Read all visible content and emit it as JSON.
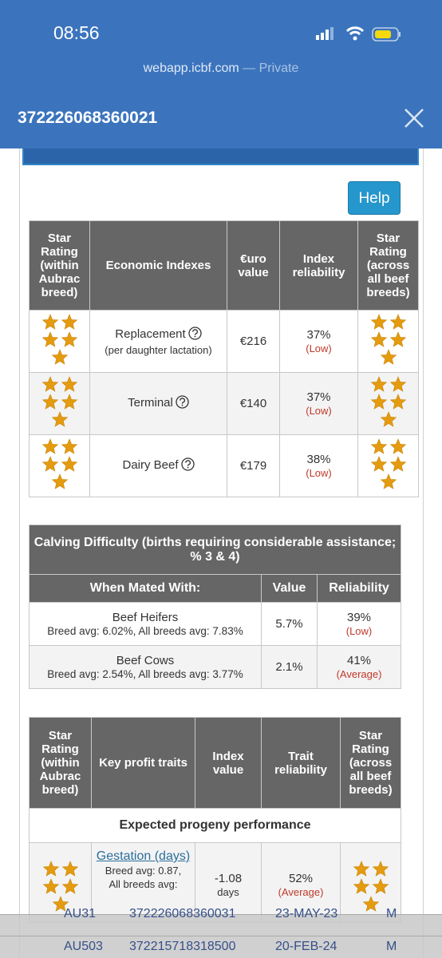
{
  "status_bar": {
    "time": "08:56"
  },
  "browser": {
    "url": "webapp.icbf.com",
    "mode": "— Private"
  },
  "header": {
    "title": "372226068360021"
  },
  "help_button": "Help",
  "economic_table": {
    "headers": [
      "Star Rating (within Aubrac breed)",
      "Economic Indexes",
      "€uro value",
      "Index reliability",
      "Star Rating (across all beef breeds)"
    ],
    "rows": [
      {
        "stars_within": 5,
        "index": "Replacement",
        "note": "(per daughter lactation)",
        "value": "€216",
        "reliability": "37%",
        "level": "(Low)",
        "stars_across": 5
      },
      {
        "stars_within": 5,
        "index": "Terminal",
        "value": "€140",
        "reliability": "37%",
        "level": "(Low)",
        "stars_across": 5
      },
      {
        "stars_within": 5,
        "index": "Dairy Beef",
        "value": "€179",
        "reliability": "38%",
        "level": "(Low)",
        "stars_across": 5
      }
    ]
  },
  "calving_table": {
    "title": "Calving Difficulty (births requiring considerable assistance; % 3 & 4)",
    "headers": [
      "When Mated With:",
      "Value",
      "Reliability"
    ],
    "rows": [
      {
        "group": "Beef Heifers",
        "averages": "Breed avg: 6.02%, All breeds avg: 7.83%",
        "value": "5.7%",
        "reliability": "39%",
        "level": "(Low)"
      },
      {
        "group": "Beef Cows",
        "averages": "Breed avg: 2.54%, All breeds avg: 3.77%",
        "value": "2.1%",
        "reliability": "41%",
        "level": "(Average)"
      }
    ]
  },
  "traits_table": {
    "headers": [
      "Star Rating (within Aubrac breed)",
      "Key profit traits",
      "Index value",
      "Trait reliability",
      "Star Rating (across all beef breeds)"
    ],
    "section": "Expected progeny performance",
    "rows": [
      {
        "stars_within": 5,
        "trait": "Gestation (days)",
        "breed_avg": "Breed avg: 0.87,",
        "all_avg": "All breeds avg:",
        "value": "-1.08",
        "unit": "days",
        "reliability": "52%",
        "level": "(Average)",
        "stars_across": 5
      }
    ]
  },
  "background_list": {
    "rows": [
      [
        "AU31",
        "372226068360031",
        "23-MAY-23",
        "M"
      ],
      [
        "AU503",
        "372215718318500",
        "20-FEB-24",
        "M"
      ]
    ]
  }
}
